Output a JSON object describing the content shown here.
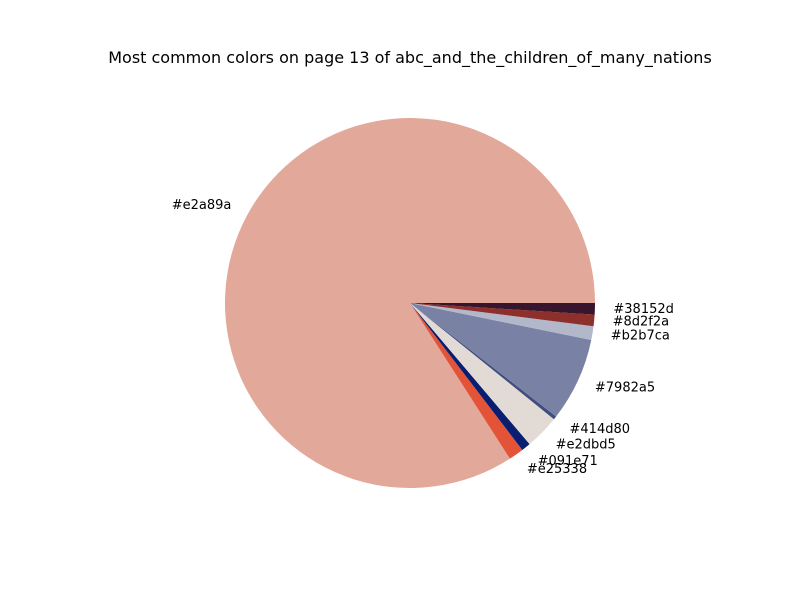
{
  "chart_data": {
    "type": "pie",
    "title": "Most common colors on page 13 of abc_and_the_children_of_many_nations",
    "start_angle_deg": 0,
    "direction": "counterclockwise",
    "slices": [
      {
        "label": "#e2a89a",
        "value": 84.0,
        "color": "#e2a89a"
      },
      {
        "label": "#e25338",
        "value": 1.3,
        "color": "#e25338"
      },
      {
        "label": "#091e71",
        "value": 0.8,
        "color": "#091e71"
      },
      {
        "label": "#e2dbd5",
        "value": 3.0,
        "color": "#e2dbd5"
      },
      {
        "label": "#414d80",
        "value": 0.3,
        "color": "#414d80"
      },
      {
        "label": "#7982a5",
        "value": 7.3,
        "color": "#7982a5"
      },
      {
        "label": "#b2b7ca",
        "value": 1.2,
        "color": "#b2b7ca"
      },
      {
        "label": "#8d2f2a",
        "value": 1.0,
        "color": "#8d2f2a"
      },
      {
        "label": "#38152d",
        "value": 1.0,
        "color": "#38152d"
      }
    ]
  }
}
